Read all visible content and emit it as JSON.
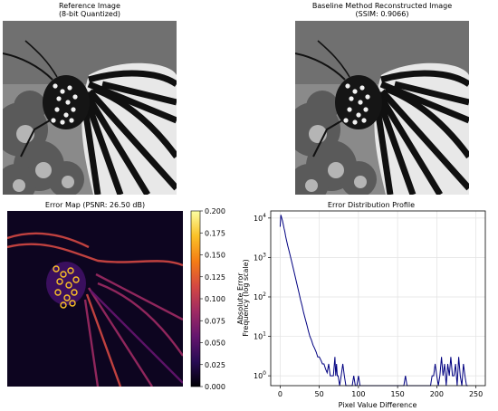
{
  "panels": {
    "reference": {
      "title_line1": "Reference Image",
      "title_line2": "(8-bit Quantized)"
    },
    "baseline": {
      "title_line1": "Baseline Method Reconstructed Image",
      "title_line2": "(SSIM: 0.9066)"
    },
    "error_map": {
      "title": "Error Map (PSNR: 26.50 dB)"
    },
    "colorbar": {
      "label": "Absolute Error",
      "ticks": [
        "0.000",
        "0.025",
        "0.050",
        "0.075",
        "0.100",
        "0.125",
        "0.150",
        "0.175",
        "0.200"
      ],
      "range": [
        0.0,
        0.2
      ],
      "colormap": [
        "#000004",
        "#280b54",
        "#65156e",
        "#9f2a63",
        "#d44842",
        "#f57d15",
        "#fac127",
        "#fcffa4"
      ]
    }
  },
  "chart_data": {
    "type": "line",
    "title": "Error Distribution Profile",
    "xlabel": "Pixel Value Difference",
    "ylabel": "Frequency (log scale)",
    "xlim": [
      -12,
      262
    ],
    "ylim_log10": [
      -0.25,
      4.18
    ],
    "yscale": "log",
    "grid": true,
    "line_color": "#000080",
    "x_ticks": [
      "0",
      "50",
      "100",
      "150",
      "200",
      "250"
    ],
    "y_ticks": [
      {
        "base": "10",
        "exp": "0"
      },
      {
        "base": "10",
        "exp": "1"
      },
      {
        "base": "10",
        "exp": "2"
      },
      {
        "base": "10",
        "exp": "3"
      },
      {
        "base": "10",
        "exp": "4"
      }
    ],
    "series": [
      {
        "x": [
          0,
          1,
          2,
          3,
          4,
          5,
          6,
          7,
          8,
          10,
          12,
          14,
          16,
          18,
          20,
          22,
          24,
          26,
          28,
          30,
          32,
          34,
          36,
          38,
          40,
          42,
          44,
          46,
          48,
          50,
          52,
          54,
          56,
          58,
          60,
          62,
          64,
          66,
          68,
          70,
          71,
          72,
          73,
          74,
          76,
          78,
          80,
          82,
          84,
          86,
          88,
          90,
          92,
          94,
          96,
          98,
          100,
          102,
          120,
          140,
          158,
          160,
          162,
          180,
          190,
          192,
          194,
          196,
          198,
          200,
          202,
          204,
          206,
          208,
          210,
          212,
          214,
          216,
          218,
          220,
          222,
          224,
          226,
          228,
          230,
          232,
          234,
          236,
          238,
          240
        ],
        "y": [
          6000,
          12000,
          10000,
          8500,
          7000,
          5500,
          4500,
          3500,
          2800,
          1900,
          1300,
          900,
          620,
          420,
          280,
          190,
          130,
          85,
          60,
          40,
          28,
          20,
          14,
          10,
          8,
          6,
          5,
          4,
          3,
          3,
          2.5,
          2,
          2,
          1.5,
          1.2,
          2,
          1,
          1,
          1,
          3,
          1,
          2,
          1,
          1,
          0,
          1,
          2,
          1,
          0,
          0,
          0,
          0,
          0,
          1,
          0,
          0,
          1,
          0,
          0,
          0,
          0,
          1,
          0,
          0,
          0,
          0,
          1,
          1,
          2,
          1,
          0,
          1,
          3,
          1,
          2,
          0,
          2,
          1,
          3,
          1,
          1,
          2,
          0,
          3,
          1,
          0,
          2,
          1,
          0,
          0
        ],
        "color": "#000080"
      }
    ]
  }
}
